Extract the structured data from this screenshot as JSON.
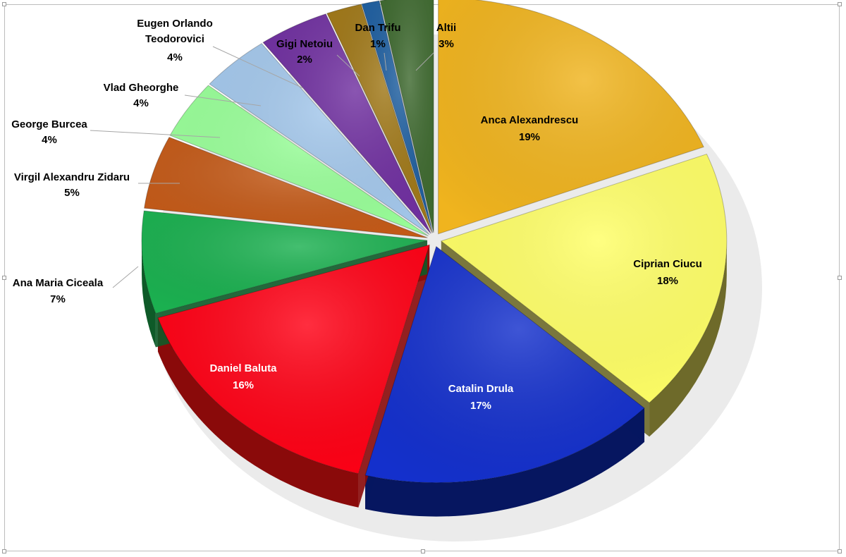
{
  "chart_data": {
    "type": "pie",
    "title": "",
    "style": "3d-exploded",
    "slices": [
      {
        "label": "Anca Alexandrescu",
        "value": 19,
        "pct_label": "19%",
        "color": "#F0B41E",
        "side_color": "#8A6A0E"
      },
      {
        "label": "Ciprian Ciucu",
        "value": 18,
        "pct_label": "18%",
        "color": "#FFFF66",
        "side_color": "#6E6A2A"
      },
      {
        "label": "Catalin Drula",
        "value": 17,
        "pct_label": "17%",
        "color": "#1430CC",
        "side_color": "#061660"
      },
      {
        "label": "Daniel Baluta",
        "value": 16,
        "pct_label": "16%",
        "color": "#FF0015",
        "side_color": "#8A0A0A"
      },
      {
        "label": "Ana Maria Ciceala",
        "value": 7,
        "pct_label": "7%",
        "color": "#1BB050",
        "side_color": "#0E5A28"
      },
      {
        "label": "Virgil Alexandru Zidaru",
        "value": 5,
        "pct_label": "5%",
        "color": "#C45A18",
        "side_color": "#5E2A0A"
      },
      {
        "label": "George Burcea",
        "value": 4,
        "pct_label": "4%",
        "color": "#99FF99",
        "side_color": "#4E8A4E"
      },
      {
        "label": "Vlad Gheorghe",
        "value": 4,
        "pct_label": "4%",
        "color": "#A4C8EC",
        "side_color": "#4E6A8A"
      },
      {
        "label": "Eugen Orlando Teodorovici",
        "value": 4,
        "pct_label": "4%",
        "color": "#7030A0",
        "side_color": "#3A1656"
      },
      {
        "label": "Gigi Netoiu",
        "value": 2,
        "pct_label": "2%",
        "color": "#A07818",
        "side_color": "#54400C"
      },
      {
        "label": "Dan Trifu",
        "value": 1,
        "pct_label": "1%",
        "color": "#1F5FA0",
        "side_color": "#0E2E50"
      },
      {
        "label": "Altii",
        "value": 3,
        "pct_label": "3%",
        "color": "#3F6A30",
        "side_color": "#203818"
      }
    ],
    "legend": "none"
  }
}
